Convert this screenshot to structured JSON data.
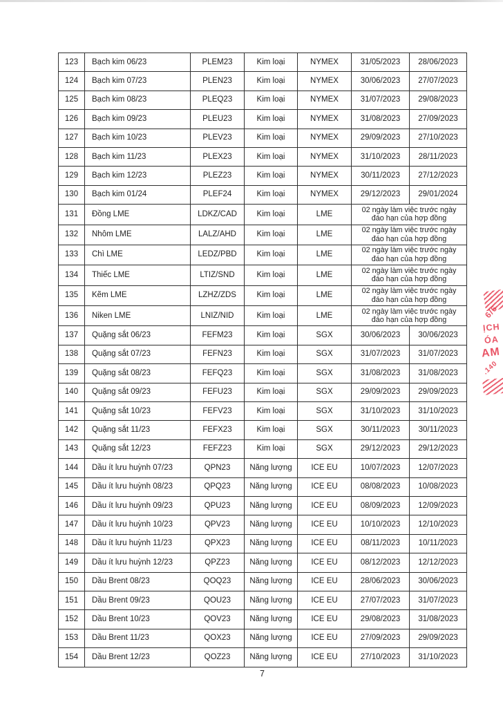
{
  "page": {
    "number": "7"
  },
  "table": {
    "column_keys": [
      "no",
      "name",
      "code",
      "group",
      "exchange",
      "date1",
      "date2"
    ],
    "lme_deadline": {
      "text": "02 ngày làm việc trước ngày đáo hạn của hợp đồng",
      "lines": [
        "02 ngày làm việc trước ngày",
        "đáo hạn của hợp đồng"
      ]
    },
    "rows": [
      {
        "no": "123",
        "name": "Bạch kim 06/23",
        "code": "PLEM23",
        "group": "Kim loại",
        "exchange": "NYMEX",
        "date1": "31/05/2023",
        "date2": "28/06/2023"
      },
      {
        "no": "124",
        "name": "Bạch kim 07/23",
        "code": "PLEN23",
        "group": "Kim loại",
        "exchange": "NYMEX",
        "date1": "30/06/2023",
        "date2": "27/07/2023"
      },
      {
        "no": "125",
        "name": "Bạch kim 08/23",
        "code": "PLEQ23",
        "group": "Kim loại",
        "exchange": "NYMEX",
        "date1": "31/07/2023",
        "date2": "29/08/2023"
      },
      {
        "no": "126",
        "name": "Bạch kim 09/23",
        "code": "PLEU23",
        "group": "Kim loại",
        "exchange": "NYMEX",
        "date1": "31/08/2023",
        "date2": "27/09/2023"
      },
      {
        "no": "127",
        "name": "Bạch kim 10/23",
        "code": "PLEV23",
        "group": "Kim loại",
        "exchange": "NYMEX",
        "date1": "29/09/2023",
        "date2": "27/10/2023"
      },
      {
        "no": "128",
        "name": "Bạch kim 11/23",
        "code": "PLEX23",
        "group": "Kim loại",
        "exchange": "NYMEX",
        "date1": "31/10/2023",
        "date2": "28/11/2023"
      },
      {
        "no": "129",
        "name": "Bạch kim 12/23",
        "code": "PLEZ23",
        "group": "Kim loại",
        "exchange": "NYMEX",
        "date1": "30/11/2023",
        "date2": "27/12/2023"
      },
      {
        "no": "130",
        "name": "Bạch kim 01/24",
        "code": "PLEF24",
        "group": "Kim loại",
        "exchange": "NYMEX",
        "date1": "29/12/2023",
        "date2": "29/01/2024"
      },
      {
        "no": "131",
        "name": "Đồng LME",
        "code": "LDKZ/CAD",
        "group": "Kim loại",
        "exchange": "LME",
        "deadline": true
      },
      {
        "no": "132",
        "name": "Nhôm LME",
        "code": "LALZ/AHD",
        "group": "Kim loại",
        "exchange": "LME",
        "deadline": true
      },
      {
        "no": "133",
        "name": "Chì LME",
        "code": "LEDZ/PBD",
        "group": "Kim loại",
        "exchange": "LME",
        "deadline": true
      },
      {
        "no": "134",
        "name": "Thiếc LME",
        "code": "LTIZ/SND",
        "group": "Kim loại",
        "exchange": "LME",
        "deadline": true
      },
      {
        "no": "135",
        "name": "Kẽm LME",
        "code": "LZHZ/ZDS",
        "group": "Kim loại",
        "exchange": "LME",
        "deadline": true
      },
      {
        "no": "136",
        "name": "Niken LME",
        "code": "LNIZ/NID",
        "group": "Kim loại",
        "exchange": "LME",
        "deadline": true
      },
      {
        "no": "137",
        "name": "Quặng sắt 06/23",
        "code": "FEFM23",
        "group": "Kim loại",
        "exchange": "SGX",
        "date1": "30/06/2023",
        "date2": "30/06/2023"
      },
      {
        "no": "138",
        "name": "Quặng sắt 07/23",
        "code": "FEFN23",
        "group": "Kim loại",
        "exchange": "SGX",
        "date1": "31/07/2023",
        "date2": "31/07/2023"
      },
      {
        "no": "139",
        "name": "Quặng sắt 08/23",
        "code": "FEFQ23",
        "group": "Kim loại",
        "exchange": "SGX",
        "date1": "31/08/2023",
        "date2": "31/08/2023"
      },
      {
        "no": "140",
        "name": "Quặng sắt 09/23",
        "code": "FEFU23",
        "group": "Kim loại",
        "exchange": "SGX",
        "date1": "29/09/2023",
        "date2": "29/09/2023"
      },
      {
        "no": "141",
        "name": "Quặng sắt 10/23",
        "code": "FEFV23",
        "group": "Kim loại",
        "exchange": "SGX",
        "date1": "31/10/2023",
        "date2": "31/10/2023"
      },
      {
        "no": "142",
        "name": "Quặng sắt 11/23",
        "code": "FEFX23",
        "group": "Kim loại",
        "exchange": "SGX",
        "date1": "30/11/2023",
        "date2": "30/11/2023"
      },
      {
        "no": "143",
        "name": "Quặng sắt 12/23",
        "code": "FEFZ23",
        "group": "Kim loại",
        "exchange": "SGX",
        "date1": "29/12/2023",
        "date2": "29/12/2023"
      },
      {
        "no": "144",
        "name": "Dầu ít lưu huỳnh 07/23",
        "code": "QPN23",
        "group": "Năng lượng",
        "exchange": "ICE EU",
        "date1": "10/07/2023",
        "date2": "12/07/2023"
      },
      {
        "no": "145",
        "name": "Dầu ít lưu huỳnh 08/23",
        "code": "QPQ23",
        "group": "Năng lượng",
        "exchange": "ICE EU",
        "date1": "08/08/2023",
        "date2": "10/08/2023"
      },
      {
        "no": "146",
        "name": "Dầu ít lưu huỳnh 09/23",
        "code": "QPU23",
        "group": "Năng lượng",
        "exchange": "ICE EU",
        "date1": "08/09/2023",
        "date2": "12/09/2023"
      },
      {
        "no": "147",
        "name": "Dầu ít lưu huỳnh 10/23",
        "code": "QPV23",
        "group": "Năng lượng",
        "exchange": "ICE EU",
        "date1": "10/10/2023",
        "date2": "12/10/2023"
      },
      {
        "no": "148",
        "name": "Dầu ít lưu huỳnh 11/23",
        "code": "QPX23",
        "group": "Năng lượng",
        "exchange": "ICE EU",
        "date1": "08/11/2023",
        "date2": "10/11/2023"
      },
      {
        "no": "149",
        "name": "Dầu ít lưu huỳnh 12/23",
        "code": "QPZ23",
        "group": "Năng lượng",
        "exchange": "ICE EU",
        "date1": "08/12/2023",
        "date2": "12/12/2023"
      },
      {
        "no": "150",
        "name": "Dầu Brent 08/23",
        "code": "QOQ23",
        "group": "Năng lượng",
        "exchange": "ICE EU",
        "date1": "28/06/2023",
        "date2": "30/06/2023"
      },
      {
        "no": "151",
        "name": "Dầu Brent 09/23",
        "code": "QOU23",
        "group": "Năng lượng",
        "exchange": "ICE EU",
        "date1": "27/07/2023",
        "date2": "31/07/2023"
      },
      {
        "no": "152",
        "name": "Dầu Brent 10/23",
        "code": "QOV23",
        "group": "Năng lượng",
        "exchange": "ICE EU",
        "date1": "29/08/2023",
        "date2": "31/08/2023"
      },
      {
        "no": "153",
        "name": "Dầu Brent 11/23",
        "code": "QOX23",
        "group": "Năng lượng",
        "exchange": "ICE EU",
        "date1": "27/09/2023",
        "date2": "29/09/2023"
      },
      {
        "no": "154",
        "name": "Dầu Brent 12/23",
        "code": "QOZ23",
        "group": "Năng lượng",
        "exchange": "ICE EU",
        "date1": "27/10/2023",
        "date2": "31/10/2023"
      }
    ]
  },
  "stamp": {
    "color": "#e8475a",
    "fragments": {
      "top": "6/6",
      "line1": "ỊCH",
      "line2": "ÓA",
      "line3": "AM",
      "code": ".140"
    }
  }
}
